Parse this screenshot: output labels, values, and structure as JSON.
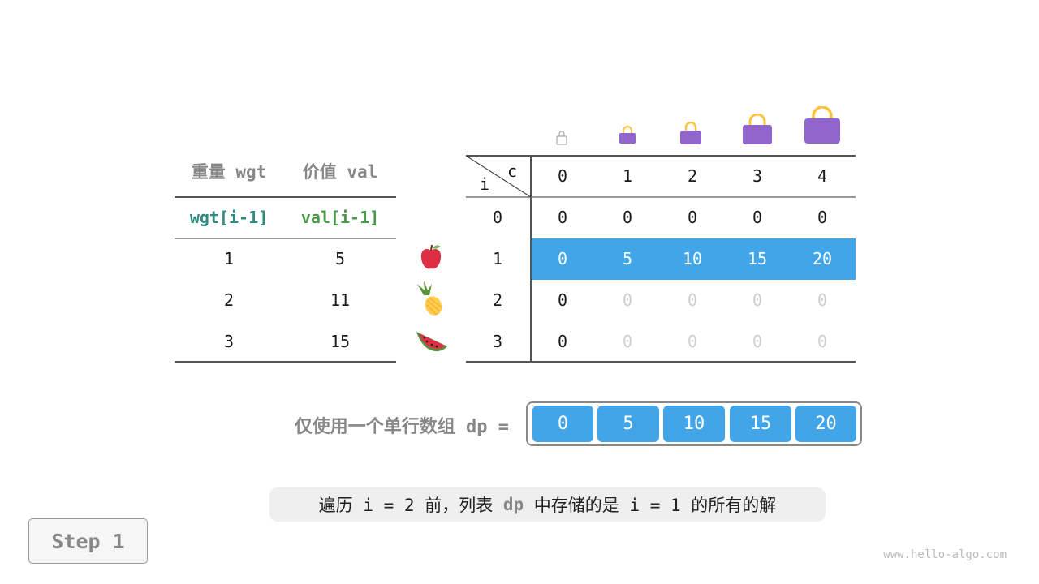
{
  "left_table": {
    "headers": [
      "重量 wgt",
      "价值 val"
    ],
    "subheaders": [
      "wgt[i-1]",
      "val[i-1]"
    ],
    "rows": [
      [
        "1",
        "5"
      ],
      [
        "2",
        "11"
      ],
      [
        "3",
        "15"
      ]
    ],
    "colors": {
      "wgt": "#2e8b82",
      "val": "#4a9a4a"
    }
  },
  "items": [
    {
      "icon": "apple-icon"
    },
    {
      "icon": "pineapple-icon"
    },
    {
      "icon": "watermelon-icon"
    }
  ],
  "dp_table": {
    "corner_c": "c",
    "corner_i": "i",
    "cols": [
      "0",
      "1",
      "2",
      "3",
      "4"
    ],
    "row_labels": [
      "0",
      "1",
      "2",
      "3"
    ],
    "rows": [
      [
        "0",
        "0",
        "0",
        "0",
        "0"
      ],
      [
        "0",
        "5",
        "10",
        "15",
        "20"
      ],
      [
        "0",
        "0",
        "0",
        "0",
        "0"
      ],
      [
        "0",
        "0",
        "0",
        "0",
        "0"
      ]
    ],
    "highlight_row": 1,
    "highlight_color": "#42a5e8"
  },
  "bags": {
    "icon": "bag-icon",
    "color": "#9166cc"
  },
  "dp_array": {
    "label": "仅使用一个单行数组 dp =",
    "values": [
      "0",
      "5",
      "10",
      "15",
      "20"
    ]
  },
  "caption": {
    "parts": [
      "遍历 i = 2 前，列表 ",
      "dp",
      " 中存储的是 i = 1 的所有的解"
    ]
  },
  "step_button": "Step 1",
  "watermark": "www.hello-algo.com"
}
